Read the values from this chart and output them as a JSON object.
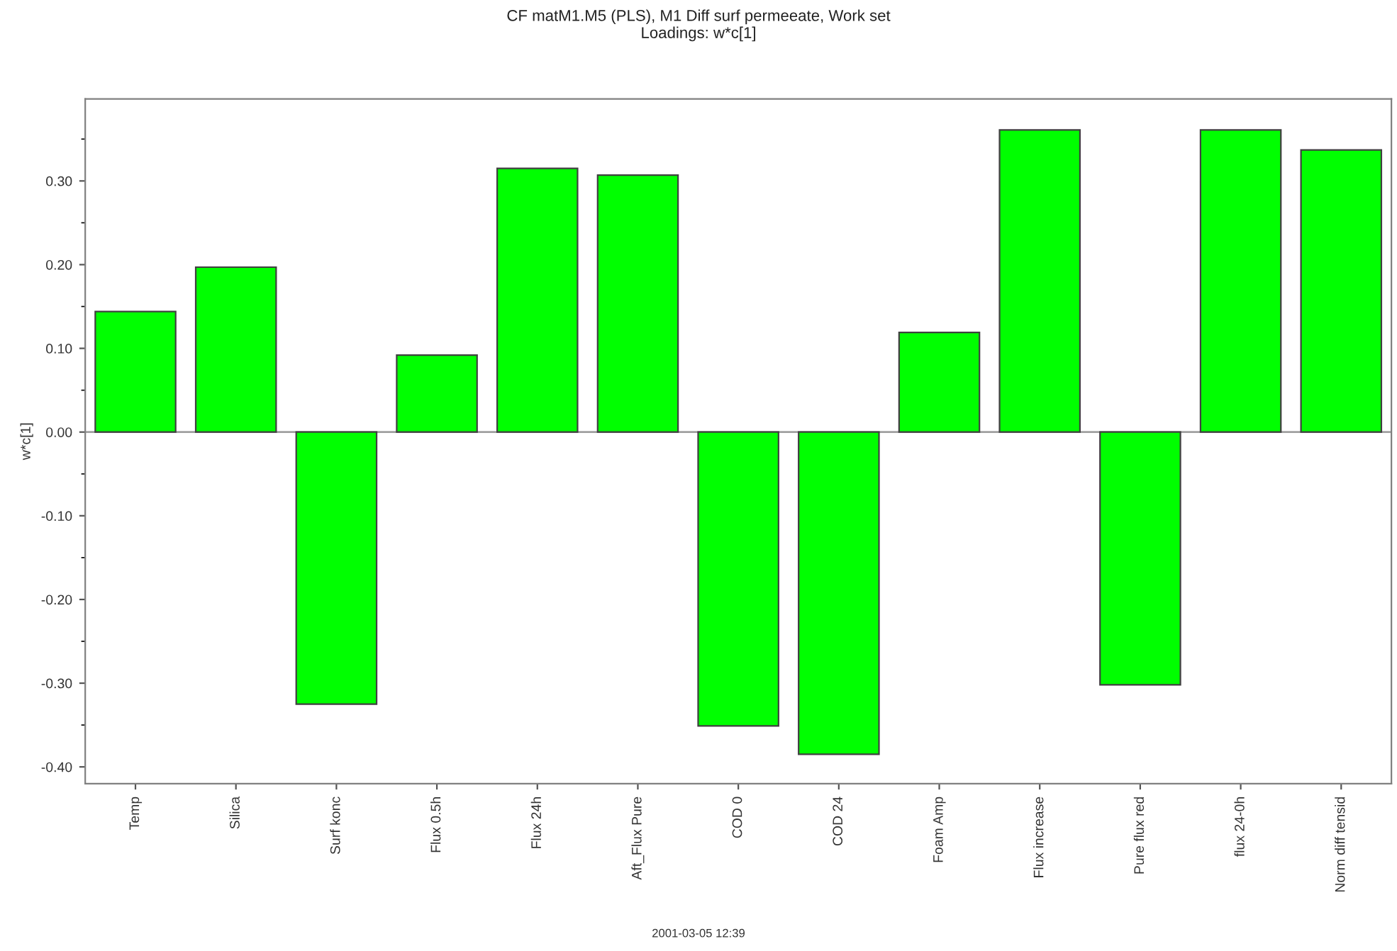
{
  "chart_data": {
    "type": "bar",
    "title": "CF matM1.M5 (PLS), M1 Diff surf permeeate, Work set",
    "subtitle": "Loadings: w*c[1]",
    "ylabel": "w*c[1]",
    "categories": [
      "Temp",
      "Silica",
      "Surf konc",
      "Flux 0.5h",
      "Flux 24h",
      "Aft_Flux Pure",
      "COD 0",
      "COD 24",
      "Foam Amp",
      "Flux increase",
      "Pure flux red",
      "flux 24-0h",
      "Norm diff tensid"
    ],
    "values": [
      0.144,
      0.197,
      -0.325,
      0.092,
      0.315,
      0.307,
      -0.351,
      -0.385,
      0.119,
      0.361,
      -0.302,
      0.361,
      0.337
    ],
    "color": "#00ff00",
    "ylim": [
      -0.42,
      0.398
    ],
    "yticks": [
      {
        "value": -0.4,
        "label": "-0.40"
      },
      {
        "value": -0.3,
        "label": "-0.30"
      },
      {
        "value": -0.2,
        "label": "-0.20"
      },
      {
        "value": -0.1,
        "label": "-0.10"
      },
      {
        "value": 0,
        "label": "0.00"
      },
      {
        "value": 0.1,
        "label": "0.10"
      },
      {
        "value": 0.2,
        "label": "0.20"
      },
      {
        "value": 0.3,
        "label": "0.30"
      }
    ],
    "ref_lines": [
      {
        "axis": "y",
        "value": 0,
        "color": "#a0a0a0"
      }
    ],
    "annotations": [
      "2001-03-05 12:39"
    ],
    "grid": false,
    "legend": false
  }
}
